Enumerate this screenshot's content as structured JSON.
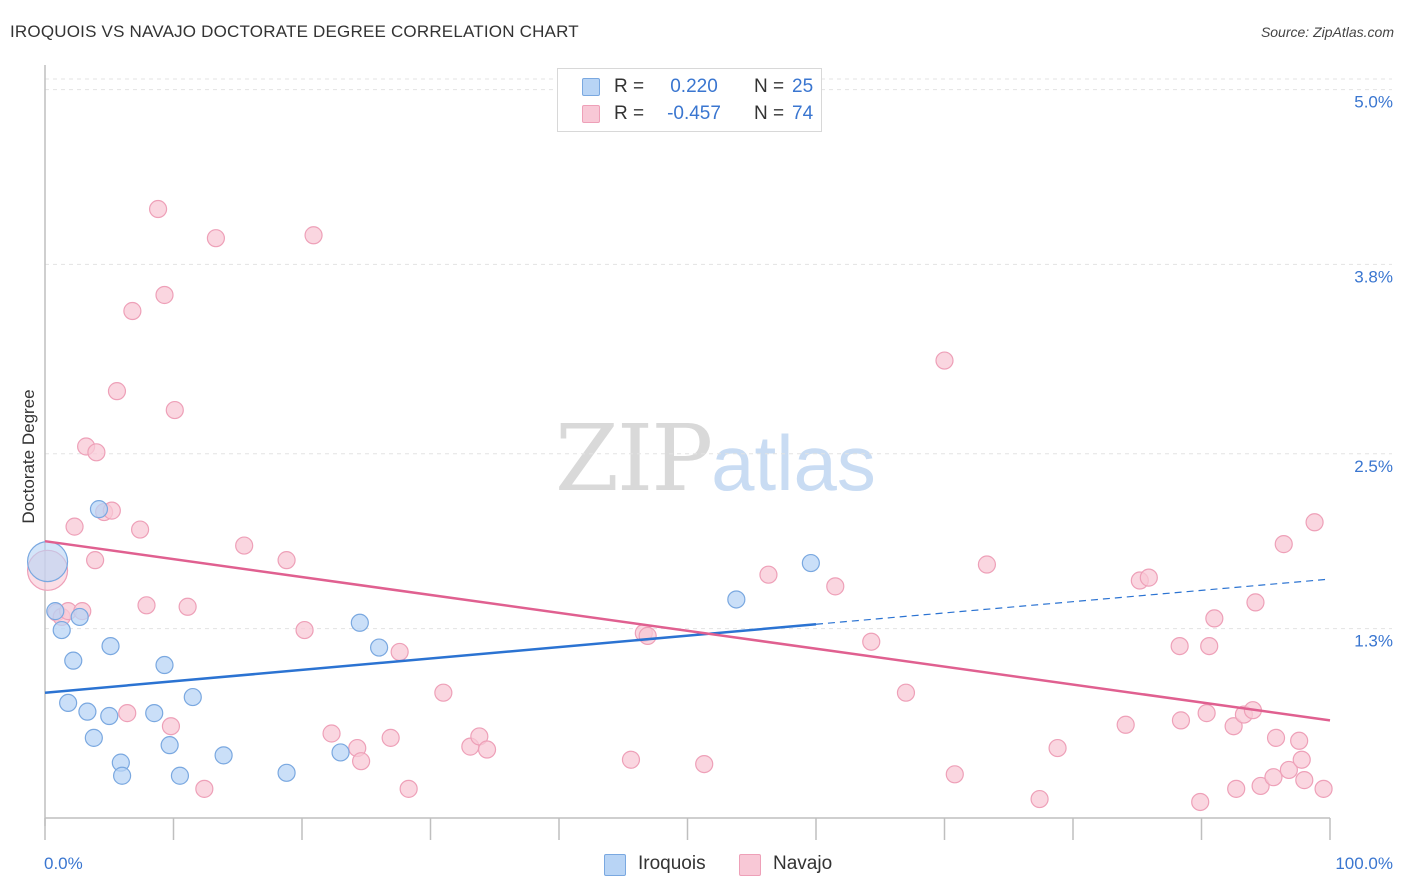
{
  "title": "IROQUOIS VS NAVAJO DOCTORATE DEGREE CORRELATION CHART",
  "source": "Source: ZipAtlas.com",
  "watermark": {
    "zip": "ZIP",
    "atlas": "atlas"
  },
  "colors": {
    "iroquois_fill": "#b8d4f5",
    "iroquois_stroke": "#7aa8e0",
    "iroquois_line": "#2b73d2",
    "navajo_fill": "#f8c8d6",
    "navajo_stroke": "#eea0b8",
    "navajo_line": "#e06090",
    "tick_label": "#3a76d0",
    "grid": "#e3e3e3"
  },
  "legend": {
    "rows": [
      {
        "r_label": "R =",
        "r_value": "0.220",
        "n_label": "N =",
        "n_value": "25"
      },
      {
        "r_label": "R =",
        "r_value": "-0.457",
        "n_label": "N =",
        "n_value": "74"
      }
    ]
  },
  "bottom_legend": {
    "series1": "Iroquois",
    "series2": "Navajo"
  },
  "chart_data": {
    "type": "scatter",
    "xlabel": "",
    "ylabel": "Doctorate Degree",
    "xlim": [
      0,
      100
    ],
    "ylim": [
      0,
      5.1
    ],
    "x_tick_labels": [
      "0.0%",
      "100.0%"
    ],
    "y_ticks": [
      1.3,
      2.5,
      3.8,
      5.0
    ],
    "y_tick_labels": [
      "1.3%",
      "2.5%",
      "3.8%",
      "5.0%"
    ],
    "grid": true,
    "legend_position": "top-center",
    "series": [
      {
        "name": "Iroquois",
        "R": 0.22,
        "N": 25,
        "trend": {
          "x0": 0,
          "y0": 0.86,
          "x1": 60,
          "y1": 1.33,
          "dashed_to_x": 100,
          "dashed_to_y": 1.64
        },
        "points": [
          {
            "x": 0.2,
            "y": 1.76
          },
          {
            "x": 0.8,
            "y": 1.42
          },
          {
            "x": 1.3,
            "y": 1.29
          },
          {
            "x": 1.8,
            "y": 0.79
          },
          {
            "x": 2.2,
            "y": 1.08
          },
          {
            "x": 2.7,
            "y": 1.38
          },
          {
            "x": 3.3,
            "y": 0.73
          },
          {
            "x": 3.8,
            "y": 0.55
          },
          {
            "x": 4.2,
            "y": 2.12
          },
          {
            "x": 5.0,
            "y": 0.7
          },
          {
            "x": 5.1,
            "y": 1.18
          },
          {
            "x": 5.9,
            "y": 0.38
          },
          {
            "x": 6.0,
            "y": 0.29
          },
          {
            "x": 8.5,
            "y": 0.72
          },
          {
            "x": 9.3,
            "y": 1.05
          },
          {
            "x": 9.7,
            "y": 0.5
          },
          {
            "x": 10.5,
            "y": 0.29
          },
          {
            "x": 11.5,
            "y": 0.83
          },
          {
            "x": 13.9,
            "y": 0.43
          },
          {
            "x": 18.8,
            "y": 0.31
          },
          {
            "x": 23.0,
            "y": 0.45
          },
          {
            "x": 24.5,
            "y": 1.34
          },
          {
            "x": 26.0,
            "y": 1.17
          },
          {
            "x": 53.8,
            "y": 1.5
          },
          {
            "x": 59.6,
            "y": 1.75
          }
        ]
      },
      {
        "name": "Navajo",
        "R": -0.457,
        "N": 74,
        "trend": {
          "x0": 0,
          "y0": 1.9,
          "x1": 100,
          "y1": 0.67
        },
        "points": [
          {
            "x": 0.2,
            "y": 1.7
          },
          {
            "x": 0.9,
            "y": 1.41
          },
          {
            "x": 1.3,
            "y": 1.38
          },
          {
            "x": 1.8,
            "y": 1.42
          },
          {
            "x": 2.3,
            "y": 2.0
          },
          {
            "x": 2.9,
            "y": 1.42
          },
          {
            "x": 3.2,
            "y": 2.55
          },
          {
            "x": 4.0,
            "y": 2.51
          },
          {
            "x": 3.9,
            "y": 1.77
          },
          {
            "x": 4.6,
            "y": 2.1
          },
          {
            "x": 5.2,
            "y": 2.11
          },
          {
            "x": 5.6,
            "y": 2.93
          },
          {
            "x": 6.4,
            "y": 0.72
          },
          {
            "x": 6.8,
            "y": 3.48
          },
          {
            "x": 7.4,
            "y": 1.98
          },
          {
            "x": 7.9,
            "y": 1.46
          },
          {
            "x": 8.8,
            "y": 4.18
          },
          {
            "x": 9.3,
            "y": 3.59
          },
          {
            "x": 9.8,
            "y": 0.63
          },
          {
            "x": 10.1,
            "y": 2.8
          },
          {
            "x": 11.1,
            "y": 1.45
          },
          {
            "x": 12.4,
            "y": 0.2
          },
          {
            "x": 13.3,
            "y": 3.98
          },
          {
            "x": 15.5,
            "y": 1.87
          },
          {
            "x": 18.8,
            "y": 1.77
          },
          {
            "x": 20.2,
            "y": 1.29
          },
          {
            "x": 20.9,
            "y": 4.0
          },
          {
            "x": 22.3,
            "y": 0.58
          },
          {
            "x": 24.3,
            "y": 0.48
          },
          {
            "x": 24.6,
            "y": 0.39
          },
          {
            "x": 26.9,
            "y": 0.55
          },
          {
            "x": 27.6,
            "y": 1.14
          },
          {
            "x": 28.3,
            "y": 0.2
          },
          {
            "x": 31.0,
            "y": 0.86
          },
          {
            "x": 33.1,
            "y": 0.49
          },
          {
            "x": 33.8,
            "y": 0.56
          },
          {
            "x": 34.4,
            "y": 0.47
          },
          {
            "x": 45.6,
            "y": 0.4
          },
          {
            "x": 46.6,
            "y": 1.27
          },
          {
            "x": 46.9,
            "y": 1.25
          },
          {
            "x": 51.3,
            "y": 0.37
          },
          {
            "x": 56.3,
            "y": 1.67
          },
          {
            "x": 61.5,
            "y": 1.59
          },
          {
            "x": 64.3,
            "y": 1.21
          },
          {
            "x": 67.0,
            "y": 0.86
          },
          {
            "x": 70.0,
            "y": 3.14
          },
          {
            "x": 70.8,
            "y": 0.3
          },
          {
            "x": 73.3,
            "y": 1.74
          },
          {
            "x": 77.4,
            "y": 0.13
          },
          {
            "x": 78.8,
            "y": 0.48
          },
          {
            "x": 84.1,
            "y": 0.64
          },
          {
            "x": 85.2,
            "y": 1.63
          },
          {
            "x": 85.9,
            "y": 1.65
          },
          {
            "x": 88.3,
            "y": 1.18
          },
          {
            "x": 88.4,
            "y": 0.67
          },
          {
            "x": 89.9,
            "y": 0.11
          },
          {
            "x": 90.6,
            "y": 1.18
          },
          {
            "x": 91.0,
            "y": 1.37
          },
          {
            "x": 90.4,
            "y": 0.72
          },
          {
            "x": 92.5,
            "y": 0.63
          },
          {
            "x": 92.7,
            "y": 0.2
          },
          {
            "x": 93.3,
            "y": 0.71
          },
          {
            "x": 94.2,
            "y": 1.48
          },
          {
            "x": 94.0,
            "y": 0.74
          },
          {
            "x": 94.6,
            "y": 0.22
          },
          {
            "x": 95.6,
            "y": 0.28
          },
          {
            "x": 95.8,
            "y": 0.55
          },
          {
            "x": 96.4,
            "y": 1.88
          },
          {
            "x": 96.8,
            "y": 0.33
          },
          {
            "x": 97.6,
            "y": 0.53
          },
          {
            "x": 97.8,
            "y": 0.4
          },
          {
            "x": 98.0,
            "y": 0.26
          },
          {
            "x": 98.8,
            "y": 2.03
          },
          {
            "x": 99.5,
            "y": 0.2
          }
        ]
      }
    ]
  }
}
